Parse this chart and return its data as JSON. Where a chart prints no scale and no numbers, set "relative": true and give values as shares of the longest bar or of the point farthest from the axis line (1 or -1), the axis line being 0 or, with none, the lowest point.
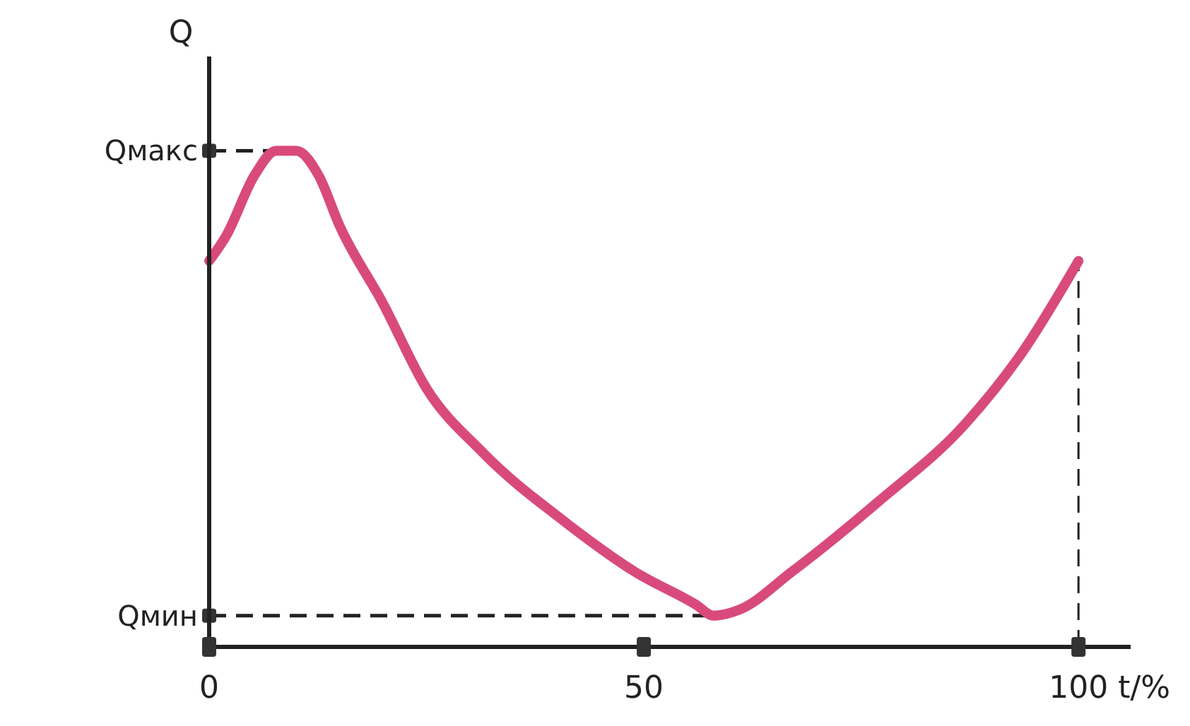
{
  "chart_data": {
    "type": "line",
    "relative": true,
    "xlabel": "t/%",
    "ylabel": "Q",
    "xlim": [
      0,
      106
    ],
    "xticks": [
      0,
      50,
      100
    ],
    "grid": false,
    "marker": "none",
    "line_style": "solid",
    "series": [
      {
        "color": "#d94a7c",
        "x": [
          0,
          2,
          5.2,
          7.7,
          10,
          12.6,
          15,
          20,
          25,
          31.4,
          41,
          49,
          56,
          58,
          61,
          67,
          77,
          87,
          93.5,
          100
        ],
        "values": [
          0.778,
          0.83,
          0.95,
          1,
          1,
          0.95,
          0.849,
          0.692,
          0.521,
          0.393,
          0.251,
          0.151,
          0.085,
          0.063,
          0.075,
          0.151,
          0.293,
          0.45,
          0.593,
          0.778
        ]
      }
    ],
    "ref_lines": [
      {
        "axis": "y",
        "value": 1,
        "label": "Qмакс",
        "line_style": "dashed",
        "color": "#222222"
      },
      {
        "axis": "y",
        "value": 0.063,
        "label": "Qмин",
        "line_style": "dashed",
        "color": "#222222"
      },
      {
        "axis": "x",
        "value": 100,
        "line_style": "dashed",
        "color": "#222222"
      }
    ]
  }
}
